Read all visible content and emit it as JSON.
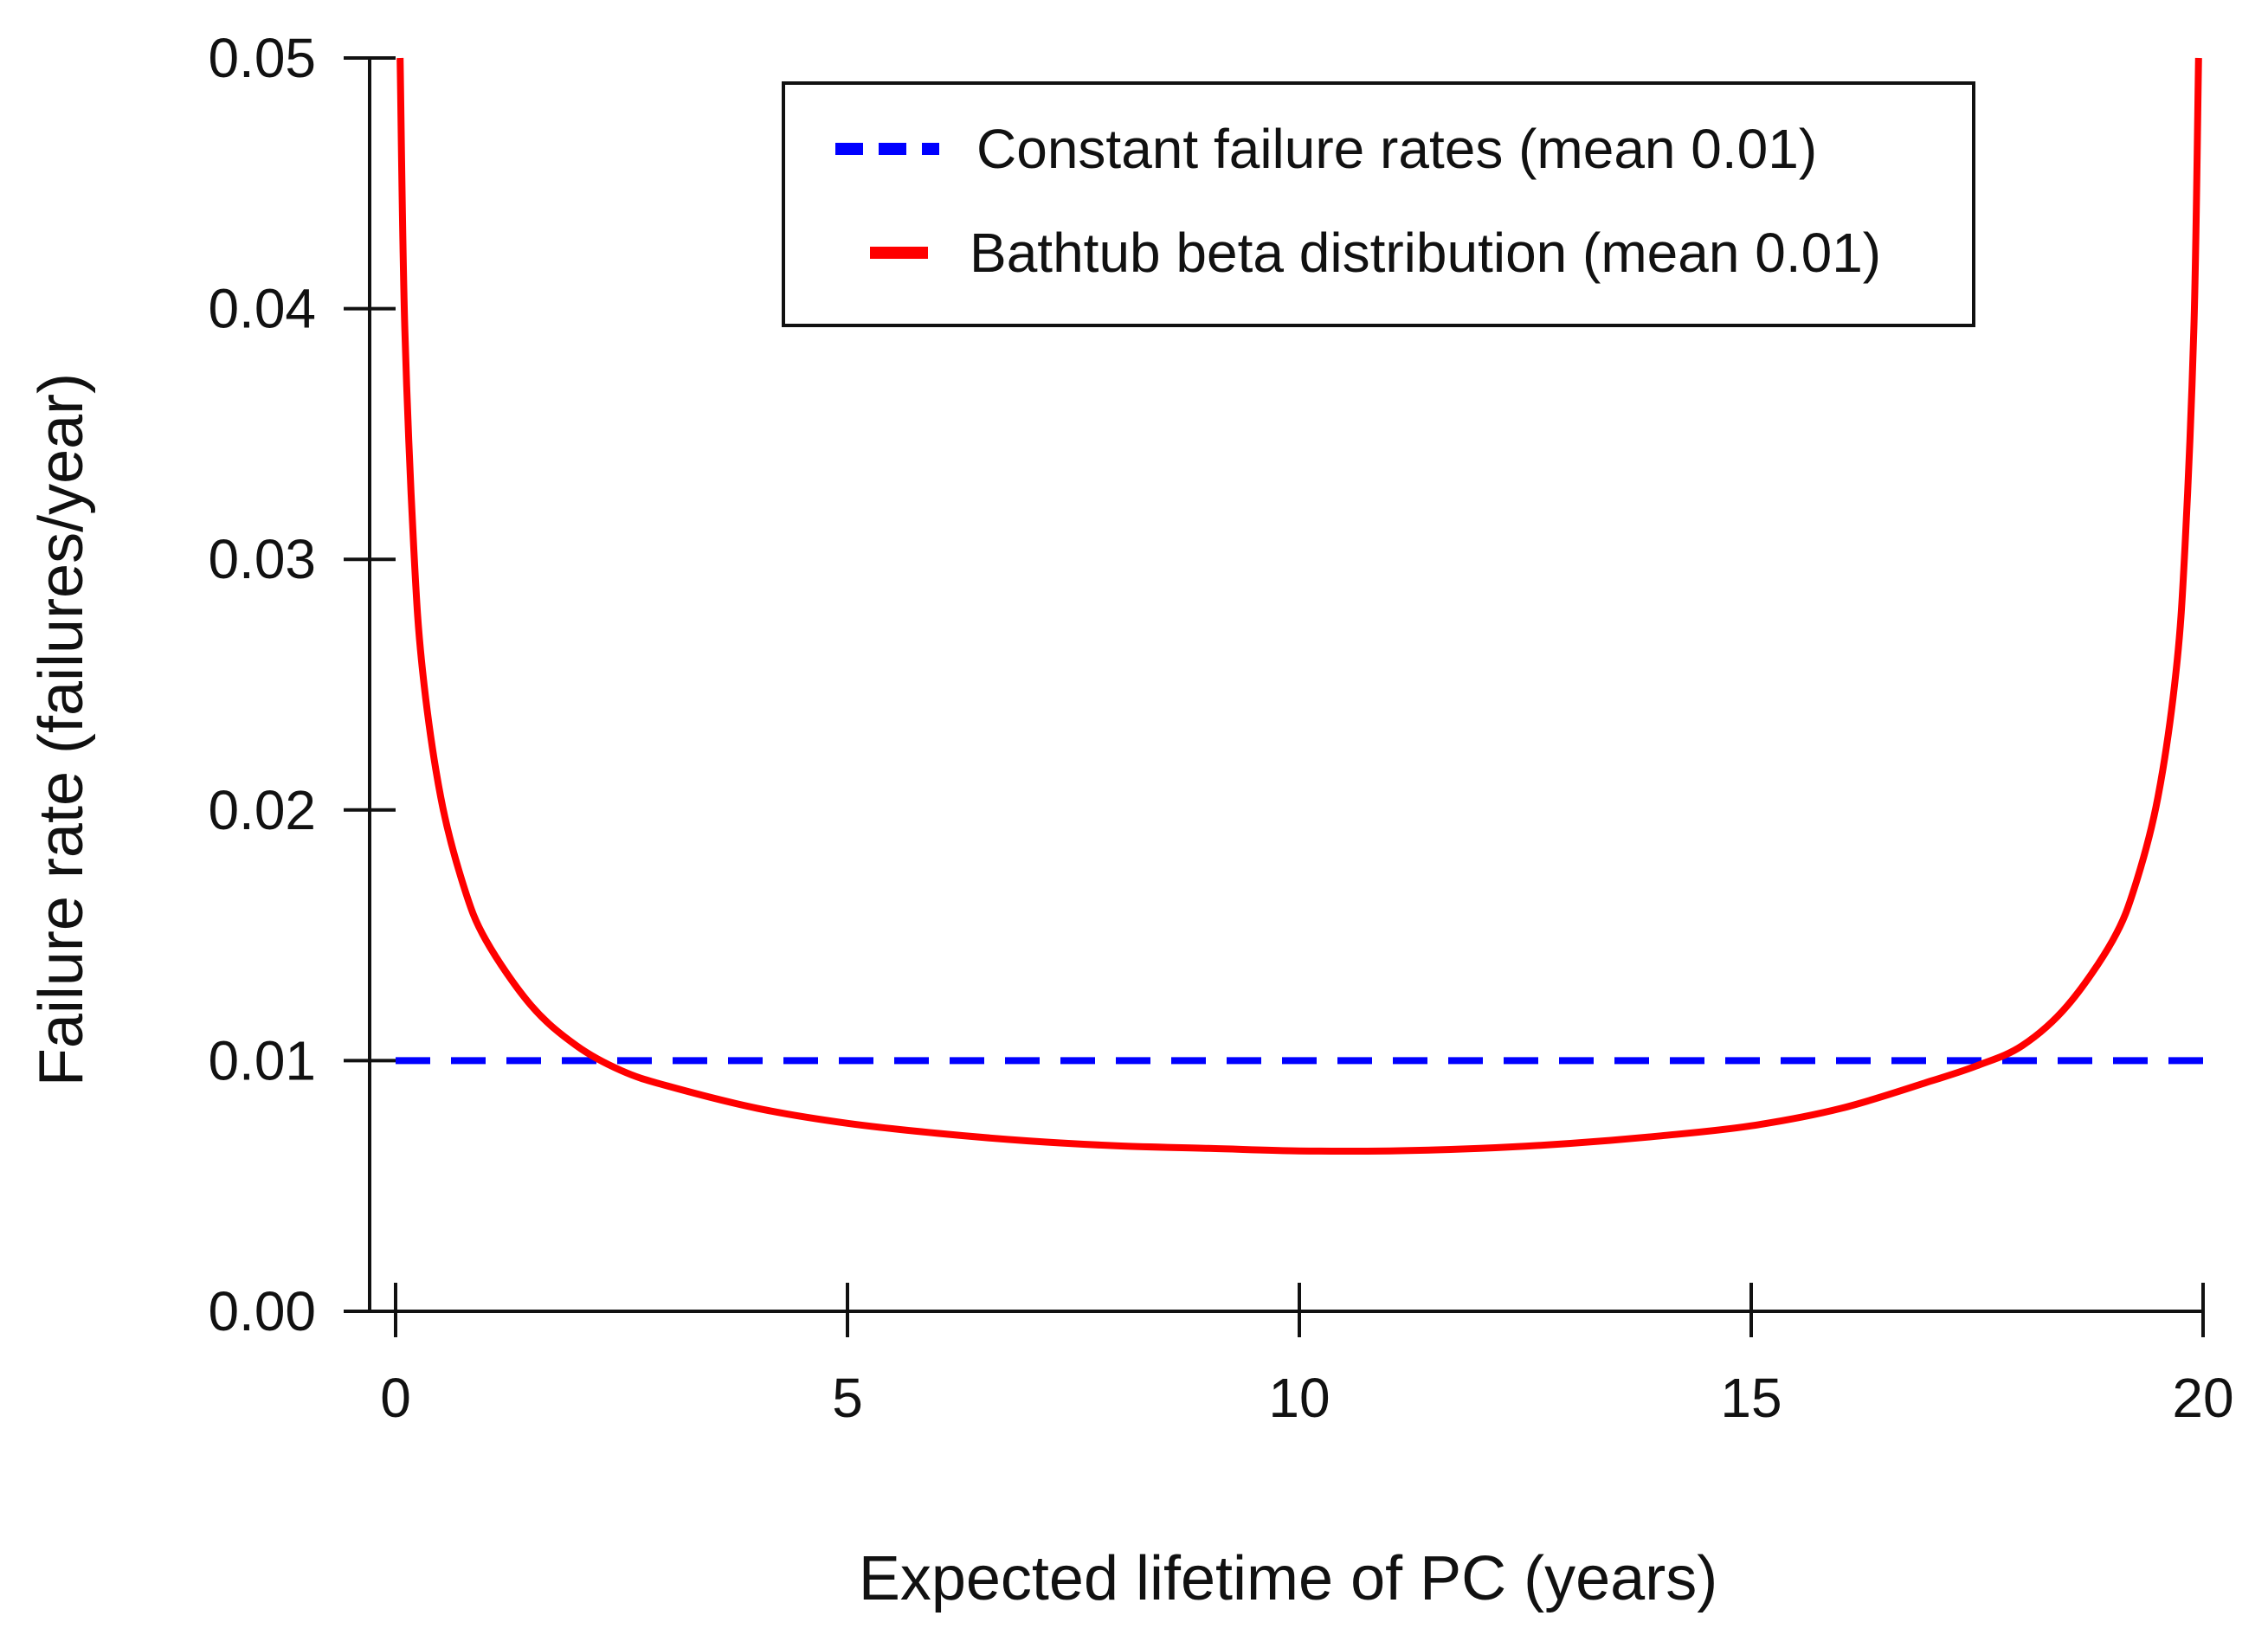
{
  "chart_data": {
    "type": "line",
    "title": "",
    "xlabel": "Expected lifetime of PC (years)",
    "ylabel": "Failure rate (failures/year)",
    "xlim": [
      0,
      20
    ],
    "ylim": [
      0,
      0.05
    ],
    "x_ticks": [
      0,
      5,
      10,
      15,
      20
    ],
    "x_tick_labels": [
      "0",
      "5",
      "10",
      "15",
      "20"
    ],
    "y_ticks": [
      0,
      0.01,
      0.02,
      0.03,
      0.04,
      0.05
    ],
    "y_tick_labels": [
      "0.00",
      "0.01",
      "0.02",
      "0.03",
      "0.04",
      "0.05"
    ],
    "grid": false,
    "legend_position": "top-right",
    "series": [
      {
        "name": "Constant failure rates (mean 0.01)",
        "color": "#0000ff",
        "style": "dashed",
        "x": [
          0,
          20
        ],
        "y": [
          0.01,
          0.01
        ]
      },
      {
        "name": "Bathtub beta distribution (mean 0.01)",
        "color": "#ff0000",
        "style": "solid",
        "x": [
          0.05,
          0.1,
          0.2,
          0.3,
          0.5,
          0.75,
          1.0,
          1.5,
          2.0,
          2.5,
          3,
          4,
          5,
          6,
          7,
          8,
          9,
          10,
          11,
          12,
          13,
          14,
          15,
          16,
          17,
          17.5,
          18,
          18.5,
          19,
          19.25,
          19.5,
          19.7,
          19.8,
          19.9,
          19.95
        ],
        "y": [
          0.05,
          0.0395,
          0.0305,
          0.0255,
          0.0205,
          0.017,
          0.0148,
          0.0122,
          0.0106,
          0.0096,
          0.009,
          0.0081,
          0.0075,
          0.0071,
          0.0068,
          0.0066,
          0.0065,
          0.0064,
          0.0064,
          0.0065,
          0.0067,
          0.007,
          0.0074,
          0.0081,
          0.0092,
          0.0098,
          0.0106,
          0.0122,
          0.0148,
          0.017,
          0.0205,
          0.0255,
          0.0305,
          0.0395,
          0.05
        ]
      }
    ]
  }
}
